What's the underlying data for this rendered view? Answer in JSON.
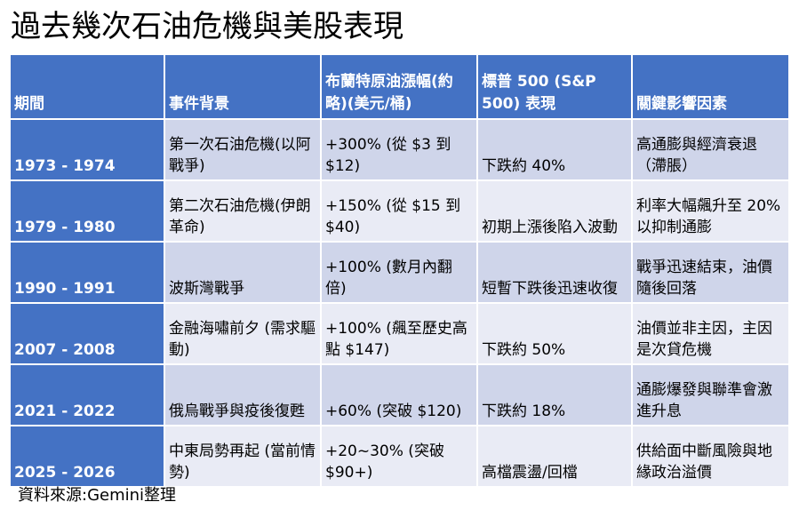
{
  "title": "過去幾次石油危機與美股表現",
  "table": {
    "headers": [
      "期間",
      "事件背景",
      "布蘭特原油漲幅(約略)(美元/桶)",
      "標普 500 (S&P 500) 表現",
      "關鍵影響因素"
    ],
    "rows": [
      [
        "1973 - 1974",
        "第一次石油危機(以阿戰爭)",
        "+300% (從 $3 到 $12)",
        "下跌約 40%",
        "高通膨與經濟衰退（滯脹）"
      ],
      [
        "1979 - 1980",
        "第二次石油危機(伊朗革命)",
        "+150% (從 $15 到 $40)",
        "初期上漲後陷入波動",
        "利率大幅飆升至 20% 以抑制通膨"
      ],
      [
        "1990 - 1991",
        "波斯灣戰爭",
        "+100% (數月內翻倍)",
        "短暫下跌後迅速收復",
        "戰爭迅速結束，油價隨後回落"
      ],
      [
        "2007 - 2008",
        "金融海嘯前夕 (需求驅動)",
        "+100% (飆至歷史高點 $147)",
        "下跌約 50%",
        "油價並非主因，主因是次貸危機"
      ],
      [
        "2021 - 2022",
        "俄烏戰爭與疫後復甦",
        "+60% (突破 $120)",
        "下跌約 18%",
        "通膨爆發與聯準會激進升息"
      ],
      [
        "2025 - 2026",
        "中東局勢再起 (當前情勢)",
        "+20~30% (突破 $90+)",
        "高檔震盪/回檔",
        "供給面中斷風險與地緣政治溢價"
      ]
    ]
  },
  "source": "資料來源:Gemini整理"
}
